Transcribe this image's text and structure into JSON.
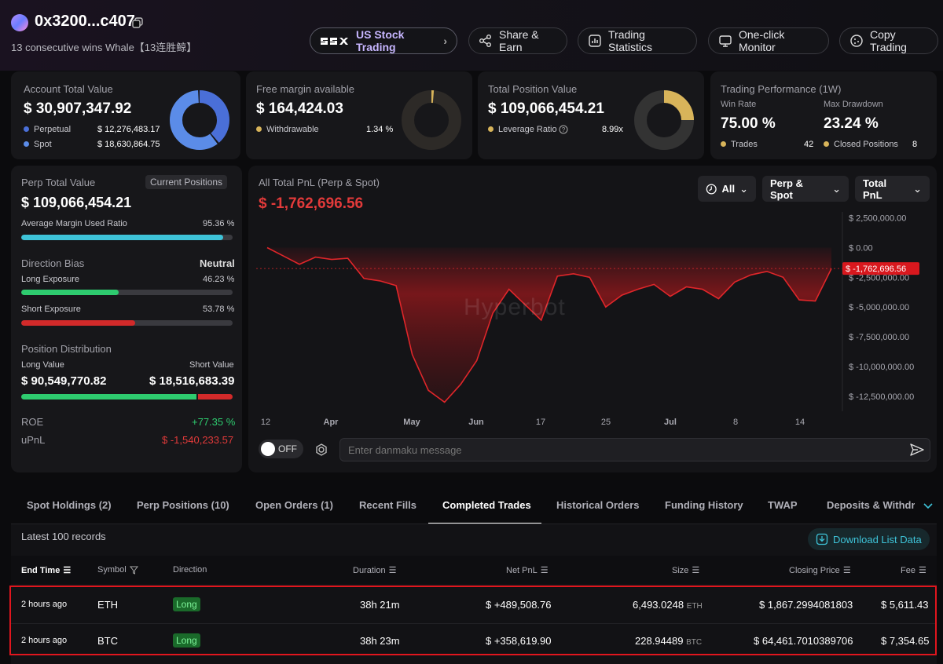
{
  "header": {
    "address": "0x3200...c407",
    "tagline": "13 consecutive wins Whale【13连胜鲸】",
    "buttons": {
      "us_stock": "US Stock Trading",
      "share": "Share & Earn",
      "stats": "Trading Statistics",
      "monitor": "One-click Monitor",
      "copy": "Copy Trading"
    }
  },
  "account": {
    "label": "Account Total Value",
    "value": "$ 30,907,347.92",
    "perp_label": "Perpetual",
    "perp_value": "$ 12,276,483.17",
    "spot_label": "Spot",
    "spot_value": "$ 18,630,864.75",
    "perp_share": 0.397
  },
  "margin": {
    "label": "Free margin available",
    "value": "$ 164,424.03",
    "withdrawable_label": "Withdrawable",
    "withdrawable_value": "1.34 %",
    "withdrawable_fraction": 0.0134
  },
  "position": {
    "label": "Total Position Value",
    "value": "$ 109,066,454.21",
    "leverage_label": "Leverage Ratio",
    "leverage_value": "8.99x"
  },
  "performance": {
    "label": "Trading Performance (1W)",
    "win_rate_label": "Win Rate",
    "win_rate": "75.00 %",
    "drawdown_label": "Max Drawdown",
    "drawdown": "23.24 %",
    "trades_label": "Trades",
    "trades": "42",
    "closed_label": "Closed Positions",
    "closed": "8"
  },
  "perp": {
    "label": "Perp Total Value",
    "current_positions": "Current Positions",
    "value": "$ 109,066,454.21",
    "margin_label": "Average Margin Used Ratio",
    "margin_value": "95.36 %",
    "margin_fraction": 0.9536,
    "bias_label": "Direction Bias",
    "bias_value": "Neutral",
    "long_label": "Long Exposure",
    "long_value": "46.23 %",
    "long_fraction": 0.4623,
    "short_label": "Short Exposure",
    "short_value": "53.78 %",
    "short_fraction": 0.5378,
    "dist_label": "Position Distribution",
    "long_value_label": "Long Value",
    "short_value_label": "Short Value",
    "long_amount": "$ 90,549,770.82",
    "short_amount": "$ 18,516,683.39",
    "long_amount_fraction": 0.83,
    "roe_label": "ROE",
    "roe_value": "+77.35 %",
    "upnl_label": "uPnL",
    "upnl_value": "$ -1,540,233.57"
  },
  "pnl_chart": {
    "title": "All Total PnL (Perp & Spot)",
    "value": "$ -1,762,696.56",
    "filter_all": "All",
    "filter_scope": "Perp & Spot",
    "filter_metric": "Total PnL",
    "current_marker": "$ -1,762,696.56",
    "watermark": "Hyperbot",
    "danmaku_toggle": "OFF",
    "danmaku_placeholder": "Enter danmaku message"
  },
  "chart_data": {
    "type": "area",
    "title": "All Total PnL (Perp & Spot)",
    "x_ticks": [
      "12",
      "Apr",
      "May",
      "Jun",
      "17",
      "25",
      "Jul",
      "8",
      "14"
    ],
    "y_ticks": [
      "$ 2,500,000.00",
      "$ 0.00",
      "$ -2,500,000.00",
      "$ -5,000,000.00",
      "$ -7,500,000.00",
      "$ -10,000,000.00",
      "$ -12,500,000.00"
    ],
    "ylim": [
      -13500000,
      3000000
    ],
    "y_values": [
      0,
      -700,
      -1400,
      -800,
      -1000,
      -900,
      -2600,
      -2800,
      -3200,
      -9000,
      -12000,
      -13000,
      -11500,
      -9500,
      -5500,
      -3500,
      -4800,
      -6100,
      -2400,
      -2200,
      -2500,
      -5000,
      -4000,
      -3500,
      -3100,
      -4100,
      -3300,
      -3500,
      -4300,
      -2900,
      -2300,
      -2000,
      -2500,
      -4400,
      -4500,
      -1763
    ],
    "current_value": -1762696.56,
    "grid": false
  },
  "tabs": [
    "Spot Holdings (2)",
    "Perp Positions (10)",
    "Open Orders (1)",
    "Recent Fills",
    "Completed Trades",
    "Historical Orders",
    "Funding History",
    "TWAP",
    "Deposits & Withdra"
  ],
  "table": {
    "records_label": "Latest 100 records",
    "download_label": "Download List Data",
    "headers": {
      "end_time": "End Time",
      "symbol": "Symbol",
      "direction": "Direction",
      "duration": "Duration",
      "net_pnl": "Net PnL",
      "size": "Size",
      "closing_price": "Closing Price",
      "fee": "Fee"
    },
    "rows": [
      {
        "time": "2 hours ago",
        "symbol": "ETH",
        "direction": "Long",
        "duration": "38h 21m",
        "pnl": "$ +489,508.76",
        "size": "6,493.0248",
        "unit": "ETH",
        "price": "$ 1,867.2994081803",
        "fee": "$ 5,611.43"
      },
      {
        "time": "2 hours ago",
        "symbol": "BTC",
        "direction": "Long",
        "duration": "38h 23m",
        "pnl": "$ +358,619.90",
        "size": "228.94489",
        "unit": "BTC",
        "price": "$ 64,461.7010389706",
        "fee": "$ 7,354.65"
      }
    ]
  },
  "colors": {
    "perp": "#4a6fd8",
    "spot": "#5b8ce8",
    "gold": "#d8b45a",
    "green": "#2ecb6f",
    "red": "#e23a3a",
    "cyan": "#3ec3d8",
    "highlight": "#e0161e"
  }
}
